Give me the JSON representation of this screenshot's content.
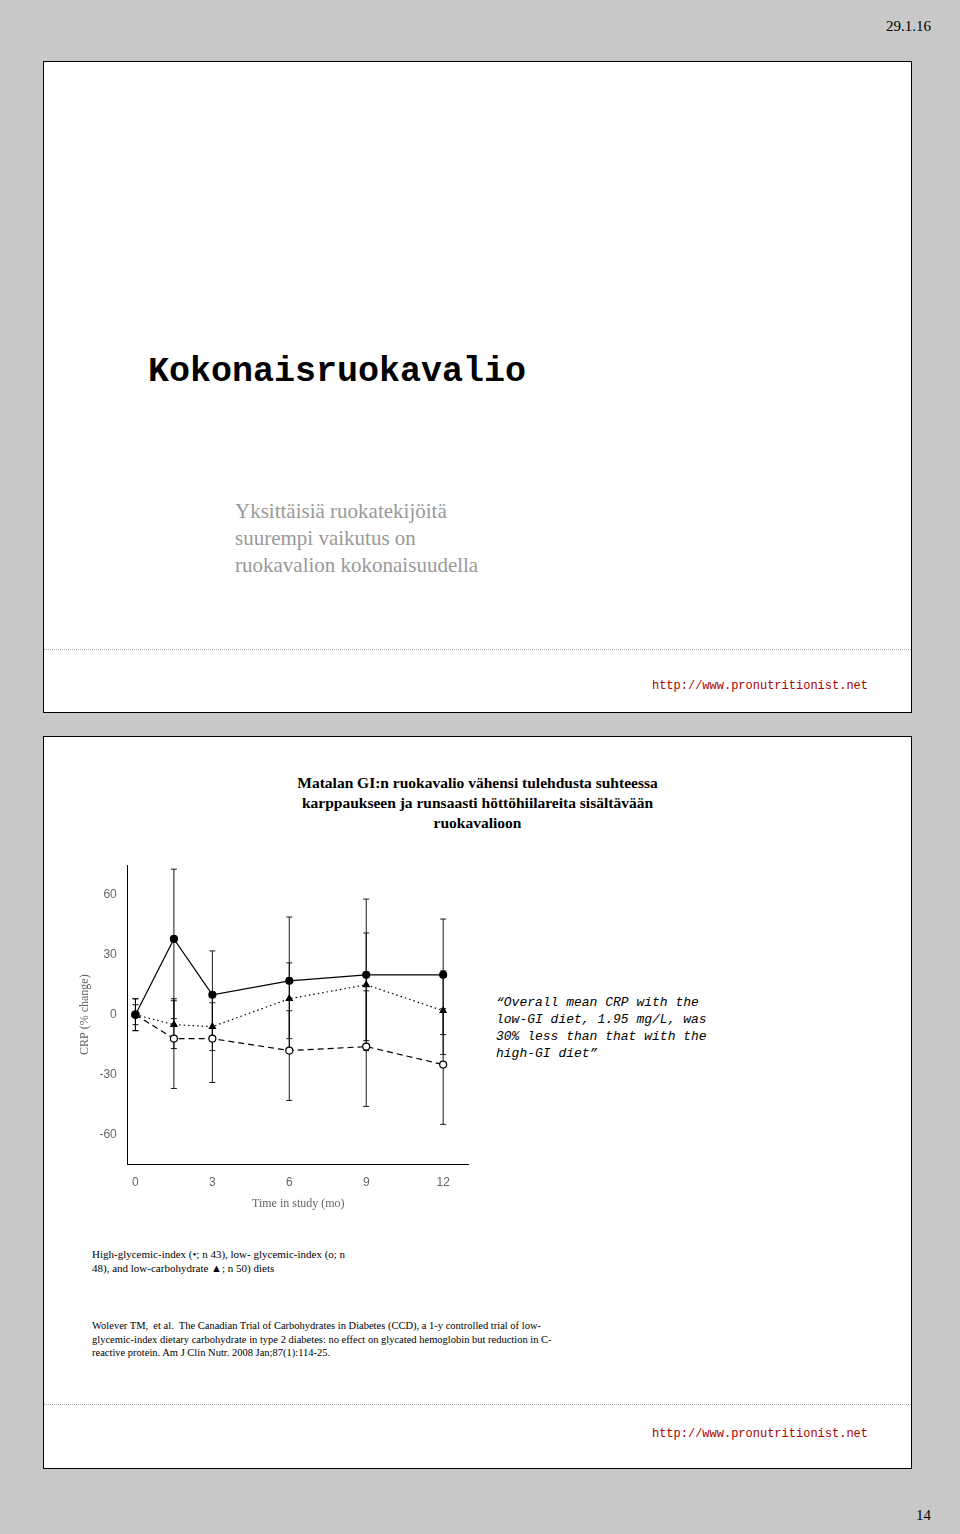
{
  "chart_data": {
    "type": "line",
    "title": "Matalan GI:n ruokavalio vähensi tulehdusta suhteessa\nkarppaukseen ja runsaasti höttöhiilareita sisältävään\nruokavalioon",
    "xlabel": "Time in study (mo)",
    "ylabel": "CRP (% change)",
    "x": [
      0,
      1.5,
      3,
      6,
      9,
      12
    ],
    "series": [
      {
        "color": "#000000",
        "marker": "circle",
        "line_style": "solid",
        "values": [
          0,
          38,
          10,
          17,
          20,
          20
        ],
        "err_low": [
          8,
          40,
          22,
          35,
          38,
          30
        ],
        "err_high": [
          8,
          35,
          22,
          32,
          38,
          28
        ]
      },
      {
        "color": "#000000",
        "marker": "open_circle",
        "line_style": "dashed",
        "values": [
          0,
          -12,
          -12,
          -18,
          -16,
          -25
        ],
        "err_low": [
          8,
          25,
          22,
          25,
          30,
          30
        ],
        "err_high": [
          8,
          20,
          22,
          20,
          28,
          28
        ]
      },
      {
        "color": "#000000",
        "marker": "triangle",
        "line_style": "dotted",
        "values": [
          0,
          -5,
          -6,
          8,
          15,
          2
        ],
        "err_low": [
          5,
          12,
          12,
          20,
          28,
          22
        ],
        "err_high": [
          5,
          12,
          12,
          18,
          26,
          20
        ]
      }
    ],
    "xlim": [
      -0.3,
      13
    ],
    "xticks": [
      0,
      3,
      6,
      9,
      12
    ],
    "ylim": [
      -75,
      75
    ],
    "yticks": [
      -60,
      -30,
      0,
      30,
      60
    ],
    "grid": false,
    "annotations": [
      "“Overall mean CRP with the\nlow-GI diet, 1.95 mg/L, was\n30% less than that with the\nhigh-GI diet”",
      "High-glycemic-index (•; n 43), low- glycemic-index (o; n\n48), and low-carbohydrate ▲; n 50) diets",
      "Wolever TM,  et al.  The Canadian Trial of Carbohydrates in Diabetes (CCD), a 1-y controlled trial of low-\nglycemic-index dietary carbohydrate in type 2 diabetes: no effect on glycated hemoglobin but reduction in C-\nreactive protein. Am J Clin Nutr. 2008 Jan;87(1):114-25."
    ]
  },
  "page": {
    "slide_title": "Kokonaisruokavalio",
    "slide_subtitle": "Yksittäisiä ruokatekijöitä\nsuurempi vaikutus on\nruokavalion kokonaisuudella",
    "url": "http://www.pronutritionist.net",
    "url_color": "#aa0000",
    "date_text": "29.1.16",
    "page_number": "14",
    "background": "#c8c8c8"
  }
}
